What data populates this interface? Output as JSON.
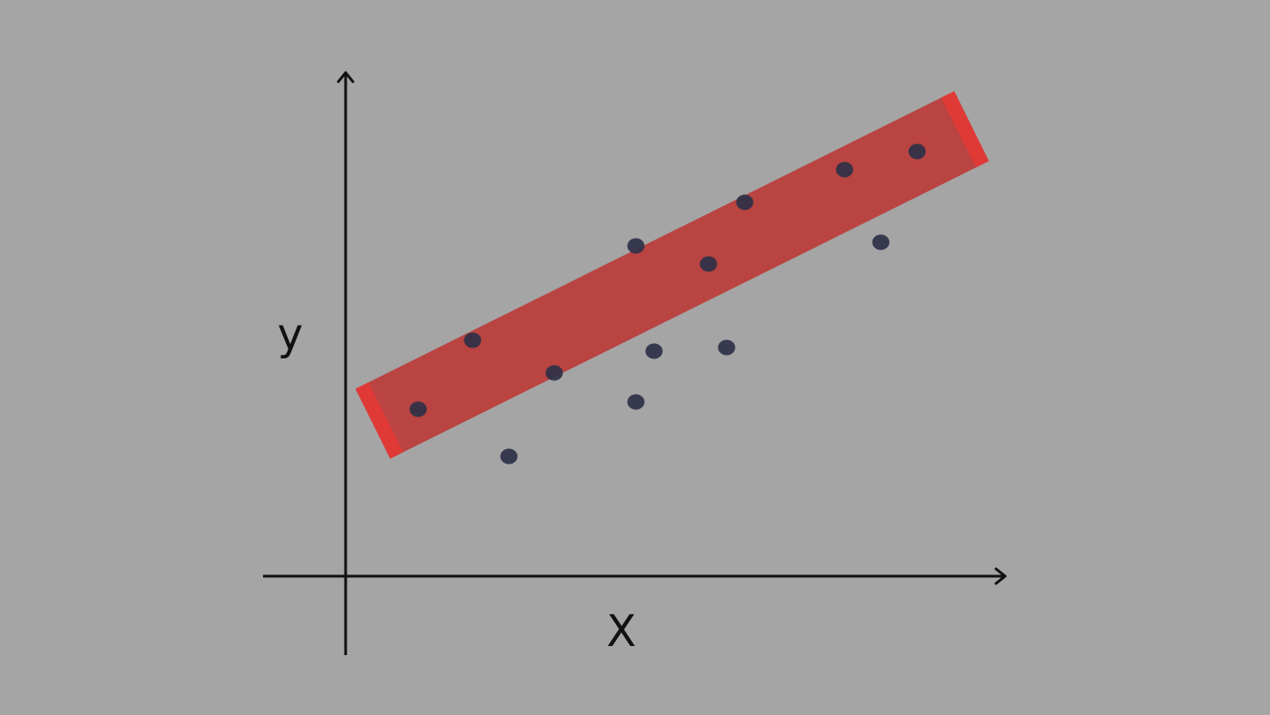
{
  "chart_data": {
    "type": "scatter",
    "xlabel": "X",
    "ylabel": "y",
    "points": [
      {
        "x": 0.8,
        "y": 4.6
      },
      {
        "x": 1.4,
        "y": 6.5
      },
      {
        "x": 1.8,
        "y": 3.3
      },
      {
        "x": 2.3,
        "y": 5.6
      },
      {
        "x": 3.2,
        "y": 4.8
      },
      {
        "x": 3.2,
        "y": 9.1
      },
      {
        "x": 3.4,
        "y": 6.2
      },
      {
        "x": 4.0,
        "y": 8.6
      },
      {
        "x": 4.2,
        "y": 6.3
      },
      {
        "x": 4.4,
        "y": 10.3
      },
      {
        "x": 5.5,
        "y": 11.2
      },
      {
        "x": 5.9,
        "y": 9.2
      },
      {
        "x": 6.3,
        "y": 11.7
      }
    ],
    "fit_line": {
      "x": [
        0.3,
        6.9
      ],
      "y": [
        4.2,
        12.4
      ]
    },
    "xlim": [
      -0.9,
      7.3
    ],
    "ylim": [
      0,
      16
    ],
    "grid": false,
    "legend": "none",
    "colors": {
      "background": "#a5a5a5",
      "axes": "#111111",
      "points": "#2e3148",
      "fit_band": "#b94441",
      "fit_band_ends": "#e03a37"
    }
  }
}
